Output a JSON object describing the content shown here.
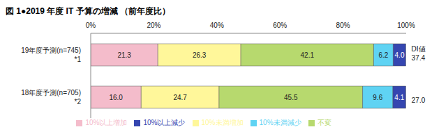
{
  "chart_data": {
    "type": "bar",
    "title": "図 1●2019 年度 IT 予算の増減 （前年度比）",
    "orientation": "horizontal",
    "stacked": true,
    "data_labels": true,
    "grid": false,
    "legend": "bottom",
    "categories": [
      "19年度予測(n=745)\n*1",
      "18年度予測(n=705)\n*2"
    ],
    "xlim": [
      0,
      100
    ],
    "xticks": [
      {
        "value": 0,
        "label": "0%"
      },
      {
        "value": 20,
        "label": "20%"
      },
      {
        "value": 40,
        "label": "40%"
      },
      {
        "value": 60,
        "label": "60%"
      },
      {
        "value": 80,
        "label": "80%"
      },
      {
        "value": 100,
        "label": "100%"
      }
    ],
    "series": [
      {
        "name": "10%以上増加",
        "color": "#f4bccb",
        "values": [
          21.3,
          16.0
        ],
        "value_labels": [
          "21.3",
          "16.0"
        ]
      },
      {
        "name": "10%未満増加",
        "color": "#fff79a",
        "values": [
          26.3,
          24.7
        ],
        "value_labels": [
          "26.3",
          "24.7"
        ]
      },
      {
        "name": "不変",
        "color": "#b7d96e",
        "values": [
          42.1,
          45.5
        ],
        "value_labels": [
          "42.1",
          "45.5"
        ]
      },
      {
        "name": "10%未満減少",
        "color": "#5fd3f3",
        "values": [
          6.2,
          9.6
        ],
        "value_labels": [
          "6.2",
          "9.6"
        ]
      },
      {
        "name": "10%以上減少",
        "color": "#3546b0",
        "values": [
          4.0,
          4.1
        ],
        "value_labels": [
          "4.0",
          "4.1"
        ]
      }
    ],
    "di": {
      "label": "DI値",
      "values": [
        37.4,
        27.0
      ],
      "value_labels": [
        "37.4",
        "27.0"
      ]
    }
  }
}
